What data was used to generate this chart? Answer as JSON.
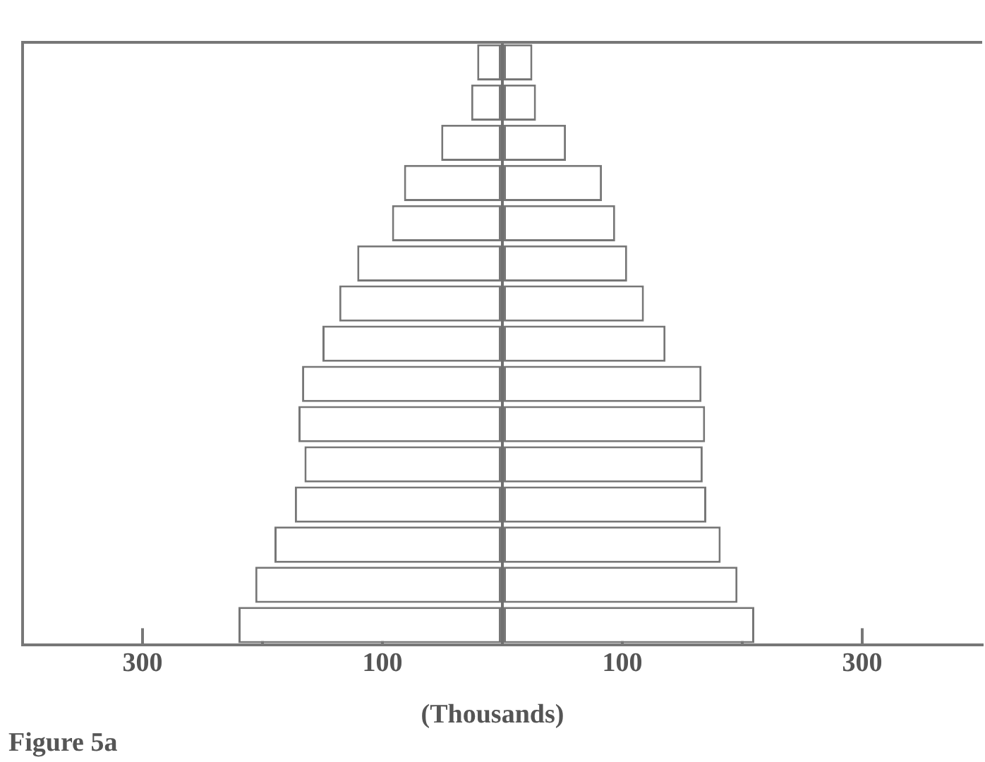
{
  "chart_data": {
    "type": "bar",
    "orientation": "horizontal",
    "stacked": true,
    "xlabel": "(Thousands)",
    "annotations": [
      "Figure 5a"
    ],
    "categories": [
      null,
      null,
      null,
      null,
      null,
      null,
      null,
      null,
      null,
      null,
      null,
      null,
      null,
      null,
      null
    ],
    "series": [
      {
        "color": "#ffffff",
        "values": [
          -21,
          -26,
          -51,
          -82,
          -92,
          -121,
          -136,
          -150,
          -167,
          -170,
          -165,
          -173,
          -190,
          -206,
          -220
        ]
      },
      {
        "color": "#ffffff",
        "values": [
          25,
          28,
          53,
          83,
          94,
          104,
          118,
          136,
          166,
          169,
          167,
          170,
          182,
          196,
          210
        ]
      }
    ],
    "xlim": [
      -400,
      400
    ],
    "xticks": [
      {
        "value": -300,
        "label": "300"
      },
      {
        "value": -200,
        "label": null
      },
      {
        "value": -100,
        "label": "100"
      },
      {
        "value": 0,
        "label": null
      },
      {
        "value": 100,
        "label": "100"
      },
      {
        "value": 200,
        "label": null
      },
      {
        "value": 300,
        "label": "300"
      }
    ],
    "ref_lines": [
      {
        "axis": "x",
        "value": 0,
        "color": "#707070"
      }
    ],
    "tick_labels": "x",
    "grid": false
  }
}
